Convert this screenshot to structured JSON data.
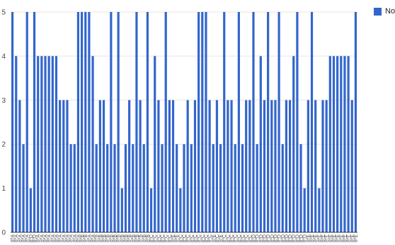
{
  "chart_data": {
    "type": "bar",
    "ylim": [
      0,
      5
    ],
    "yticks": [
      0,
      1,
      2,
      3,
      4,
      5
    ],
    "grid": true,
    "legend_position": "top-right",
    "color": "#3366cc",
    "series": [
      {
        "name": "Nota",
        "values": [
          5,
          4,
          3,
          2,
          5,
          1,
          5,
          4,
          4,
          4,
          4,
          4,
          4,
          3,
          3,
          3,
          2,
          2,
          5,
          5,
          5,
          5,
          4,
          2,
          3,
          3,
          2,
          5,
          2,
          5,
          1,
          2,
          3,
          2,
          5,
          3,
          2,
          5,
          1,
          4,
          3,
          2,
          5,
          3,
          3,
          2,
          1,
          2,
          3,
          2,
          3,
          5,
          5,
          5,
          3,
          2,
          3,
          2,
          5,
          3,
          3,
          2,
          5,
          2,
          3,
          3,
          5,
          2,
          4,
          3,
          5,
          3,
          3,
          5,
          2,
          3,
          3,
          4,
          5,
          2,
          1,
          3,
          5,
          3,
          1,
          3,
          3,
          4,
          4,
          4,
          4,
          4,
          4,
          3,
          5
        ]
      }
    ],
    "categories": [
      "8ºA",
      "8ºA",
      "8ºA",
      "8ºA",
      "8ºA",
      "8ºD",
      "8ºD",
      "8ºA",
      "8ºA",
      "8ºA",
      "8ºA",
      "8ºA",
      "8ºA",
      "8ºA",
      "8ºA",
      "8ºA",
      "8ºA",
      "8ºA",
      "8ºA",
      "8ºB",
      "8ºB",
      "8ºA",
      "8ºA",
      "8ºB",
      "8ºB",
      "8ºB",
      "8ºB",
      "8ºB",
      "8ºB",
      "8ºB",
      "8ºB",
      "8ºB",
      "8ºB",
      "8ºB",
      "8ºB",
      "8ºB",
      "8ºB",
      "8ºB",
      "8ºC",
      "8ºC",
      "8ºC",
      "8ºC",
      "8ºC",
      "8ºC",
      "8ºE",
      "8ºE",
      "8ºC",
      "8ºC",
      "8ºC",
      "8ºC",
      "8ºC",
      "8ºC",
      "8ºC",
      "8ºC",
      "8ºC",
      "8ºE",
      "8ºC",
      "8ºE",
      "8ºC",
      "8ºC",
      "8ºC",
      "8ºC",
      "8ºC",
      "8ºC",
      "8ºC",
      "8ºC",
      "8ºD",
      "8ºD",
      "8ºD",
      "8ºD",
      "8ºD",
      "8ºD",
      "8ºD",
      "8ºD",
      "8ºD",
      "8ºD",
      "8ºD",
      "8ºD",
      "8ºD",
      "8ºD",
      "8ºD",
      "8ºE",
      "8ºE",
      "8ºE",
      "8ºE",
      "8ºE",
      "8ºE",
      "8ºE",
      "8ºE",
      "8ºE",
      "8ºE",
      "8ºE",
      "8ºE",
      "8ºE",
      "8ºE"
    ]
  }
}
